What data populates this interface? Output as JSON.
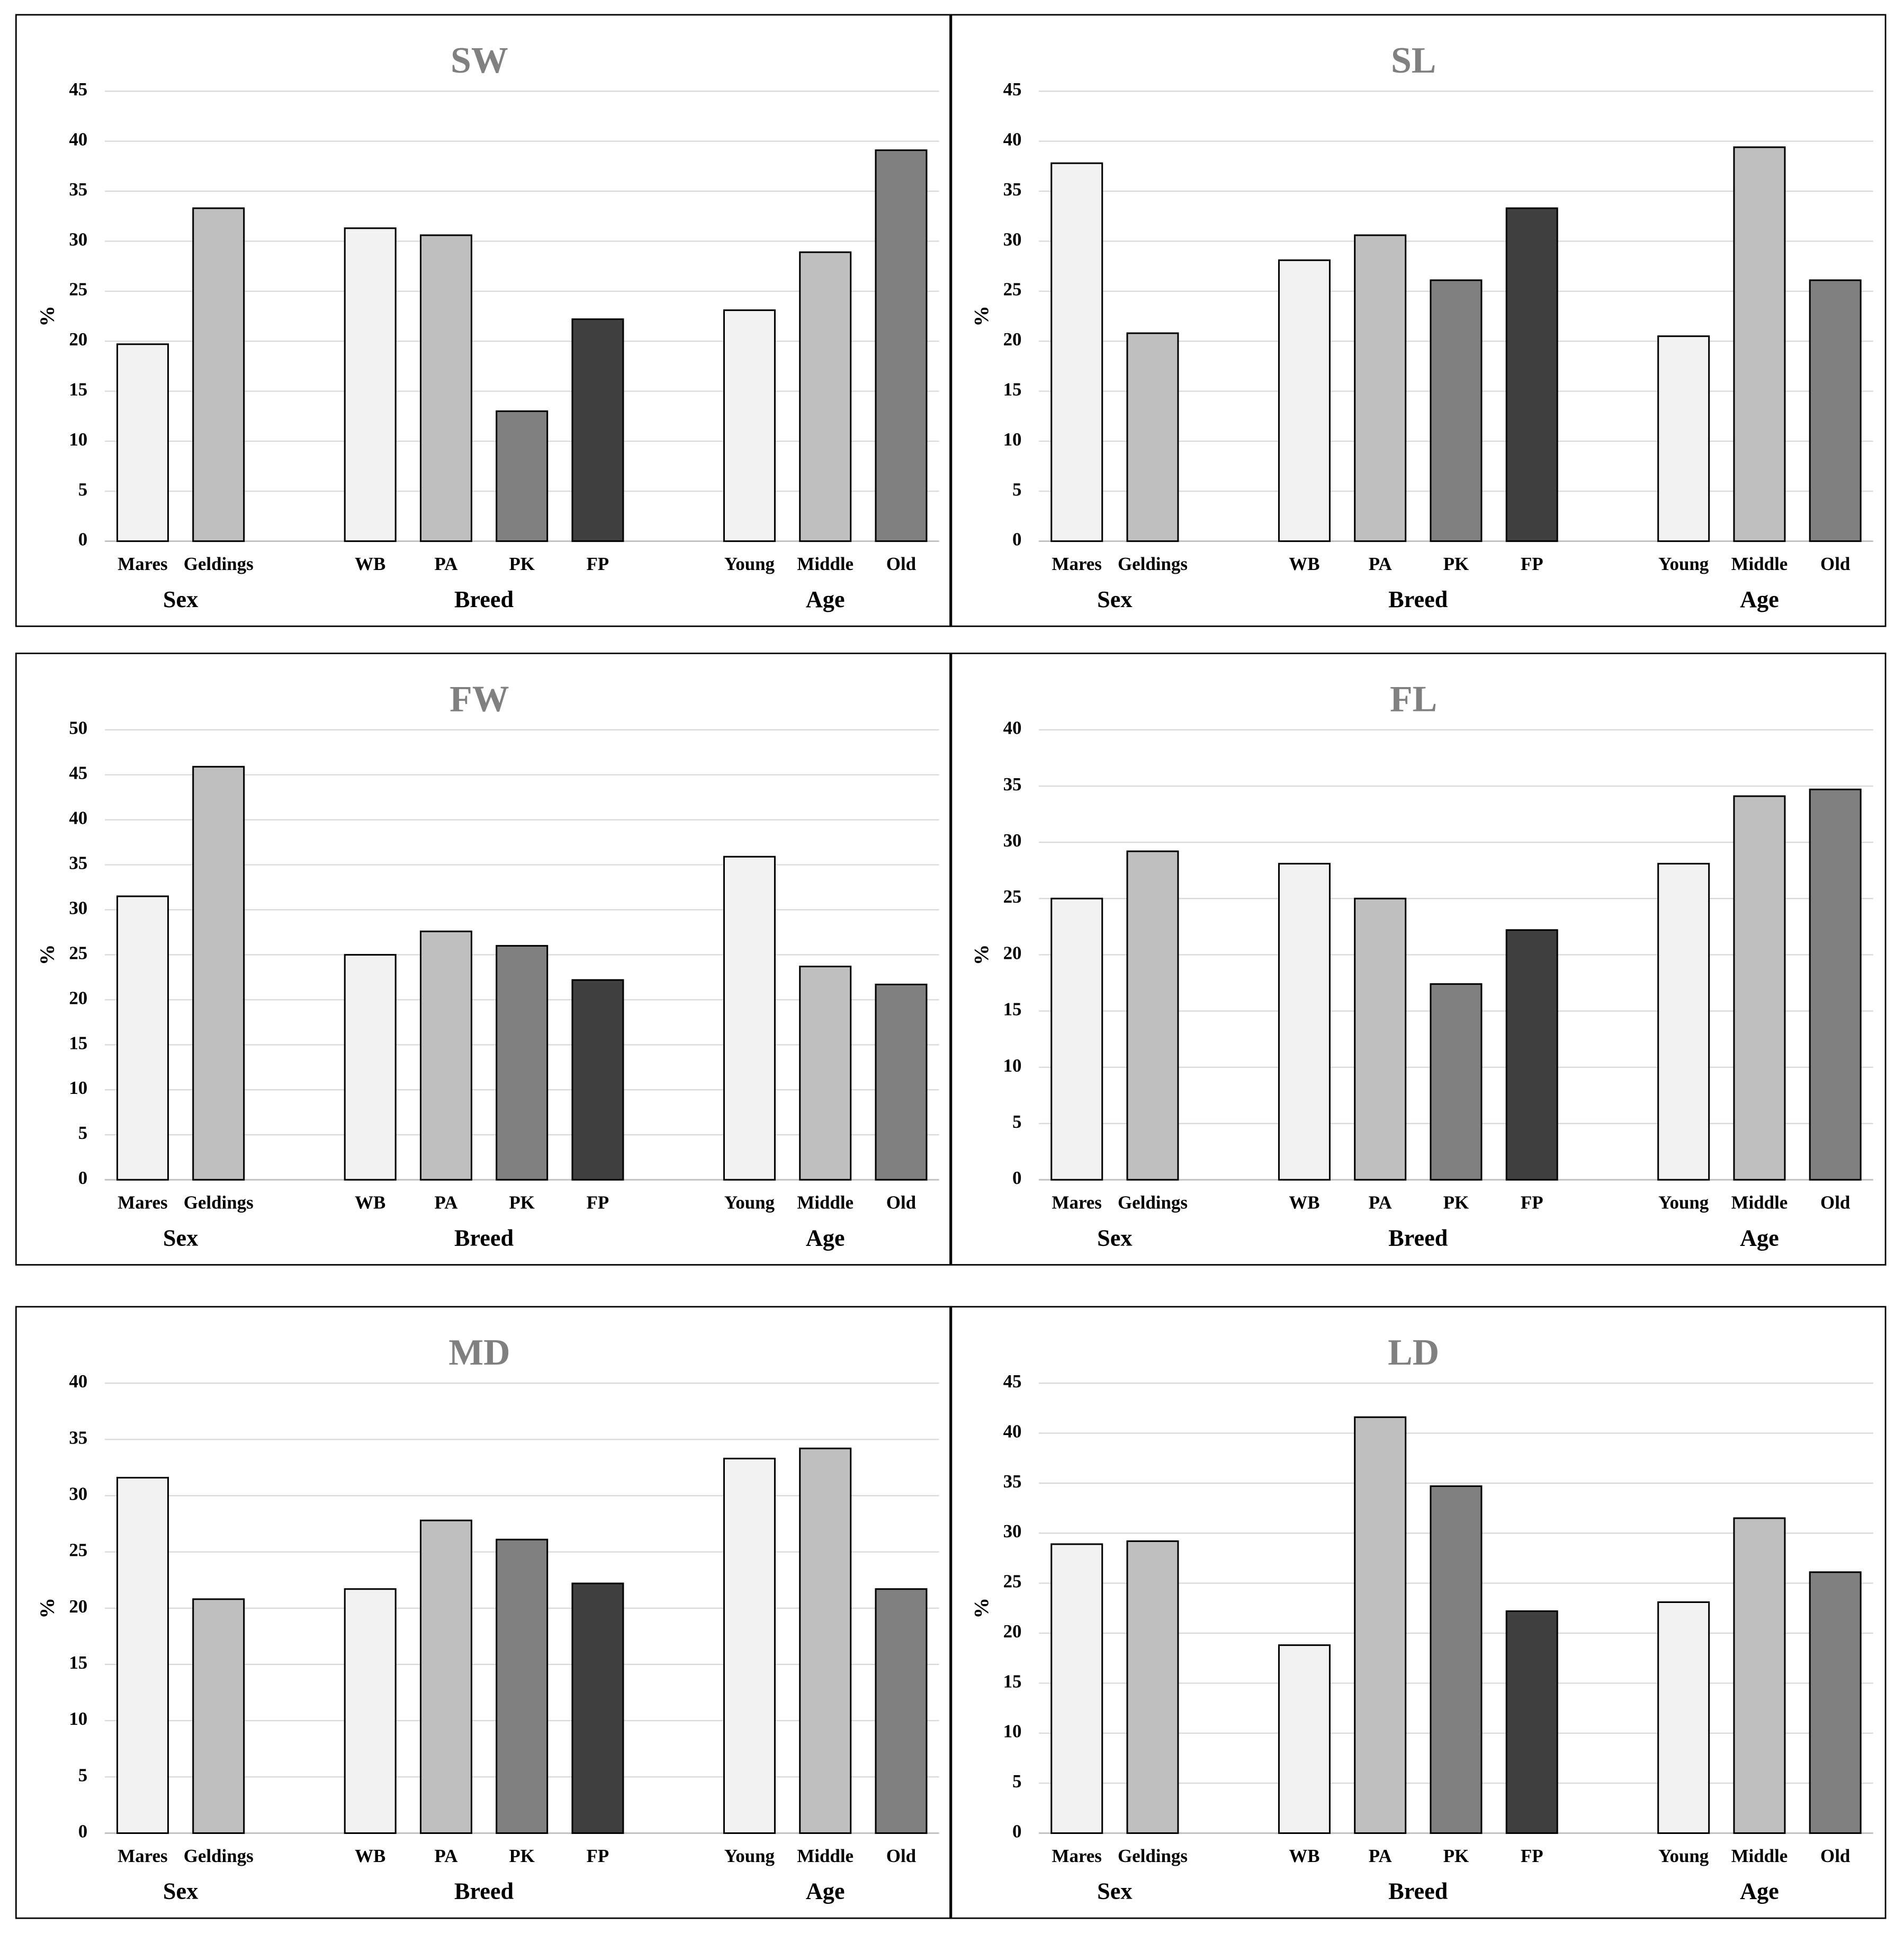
{
  "chart_data": [
    {
      "type": "bar",
      "title": "SW",
      "ylabel": "%",
      "ylim": [
        0,
        45
      ],
      "yticks": [
        0,
        5,
        10,
        15,
        20,
        25,
        30,
        35,
        40,
        45
      ],
      "grid": true,
      "groups": [
        {
          "name": "Sex",
          "categories": [
            "Mares",
            "Geldings"
          ],
          "values": [
            19.7,
            33.3
          ],
          "colors": [
            "#f2f2f2",
            "#bfbfbf"
          ]
        },
        {
          "name": "Breed",
          "categories": [
            "WB",
            "PA",
            "PK",
            "FP"
          ],
          "values": [
            31.3,
            30.6,
            13.0,
            22.2
          ],
          "colors": [
            "#f2f2f2",
            "#bfbfbf",
            "#808080",
            "#404040"
          ]
        },
        {
          "name": "Age",
          "categories": [
            "Young",
            "Middle",
            "Old"
          ],
          "values": [
            23.1,
            28.9,
            39.1
          ],
          "colors": [
            "#f2f2f2",
            "#bfbfbf",
            "#808080"
          ]
        }
      ]
    },
    {
      "type": "bar",
      "title": "SL",
      "ylabel": "%",
      "ylim": [
        0,
        45
      ],
      "yticks": [
        0,
        5,
        10,
        15,
        20,
        25,
        30,
        35,
        40,
        45
      ],
      "grid": true,
      "groups": [
        {
          "name": "Sex",
          "categories": [
            "Mares",
            "Geldings"
          ],
          "values": [
            37.8,
            20.8
          ],
          "colors": [
            "#f2f2f2",
            "#bfbfbf"
          ]
        },
        {
          "name": "Breed",
          "categories": [
            "WB",
            "PA",
            "PK",
            "FP"
          ],
          "values": [
            28.1,
            30.6,
            26.1,
            33.3
          ],
          "colors": [
            "#f2f2f2",
            "#bfbfbf",
            "#808080",
            "#404040"
          ]
        },
        {
          "name": "Age",
          "categories": [
            "Young",
            "Middle",
            "Old"
          ],
          "values": [
            20.5,
            39.4,
            26.1
          ],
          "colors": [
            "#f2f2f2",
            "#bfbfbf",
            "#808080"
          ]
        }
      ]
    },
    {
      "type": "bar",
      "title": "FW",
      "ylabel": "%",
      "ylim": [
        0,
        50
      ],
      "yticks": [
        0,
        5,
        10,
        15,
        20,
        25,
        30,
        35,
        40,
        45,
        50
      ],
      "grid": true,
      "groups": [
        {
          "name": "Sex",
          "categories": [
            "Mares",
            "Geldings"
          ],
          "values": [
            31.5,
            45.9
          ],
          "colors": [
            "#f2f2f2",
            "#bfbfbf"
          ]
        },
        {
          "name": "Breed",
          "categories": [
            "WB",
            "PA",
            "PK",
            "FP"
          ],
          "values": [
            25.0,
            27.6,
            26.0,
            22.2
          ],
          "colors": [
            "#f2f2f2",
            "#bfbfbf",
            "#808080",
            "#404040"
          ]
        },
        {
          "name": "Age",
          "categories": [
            "Young",
            "Middle",
            "Old"
          ],
          "values": [
            35.9,
            23.7,
            21.7
          ],
          "colors": [
            "#f2f2f2",
            "#bfbfbf",
            "#808080"
          ]
        }
      ]
    },
    {
      "type": "bar",
      "title": "FL",
      "ylabel": "%",
      "ylim": [
        0,
        40
      ],
      "yticks": [
        0,
        5,
        10,
        15,
        20,
        25,
        30,
        35,
        40
      ],
      "grid": true,
      "groups": [
        {
          "name": "Sex",
          "categories": [
            "Mares",
            "Geldings"
          ],
          "values": [
            25.0,
            29.2
          ],
          "colors": [
            "#f2f2f2",
            "#bfbfbf"
          ]
        },
        {
          "name": "Breed",
          "categories": [
            "WB",
            "PA",
            "PK",
            "FP"
          ],
          "values": [
            28.1,
            25.0,
            17.4,
            22.2
          ],
          "colors": [
            "#f2f2f2",
            "#bfbfbf",
            "#808080",
            "#404040"
          ]
        },
        {
          "name": "Age",
          "categories": [
            "Young",
            "Middle",
            "Old"
          ],
          "values": [
            28.1,
            34.1,
            34.7
          ],
          "colors": [
            "#f2f2f2",
            "#bfbfbf",
            "#808080"
          ]
        }
      ]
    },
    {
      "type": "bar",
      "title": "MD",
      "ylabel": "%",
      "ylim": [
        0,
        40
      ],
      "yticks": [
        0,
        5,
        10,
        15,
        20,
        25,
        30,
        35,
        40
      ],
      "grid": true,
      "groups": [
        {
          "name": "Sex",
          "categories": [
            "Mares",
            "Geldings"
          ],
          "values": [
            31.6,
            20.8
          ],
          "colors": [
            "#f2f2f2",
            "#bfbfbf"
          ]
        },
        {
          "name": "Breed",
          "categories": [
            "WB",
            "PA",
            "PK",
            "FP"
          ],
          "values": [
            21.7,
            27.8,
            26.1,
            22.2
          ],
          "colors": [
            "#f2f2f2",
            "#bfbfbf",
            "#808080",
            "#404040"
          ]
        },
        {
          "name": "Age",
          "categories": [
            "Young",
            "Middle",
            "Old"
          ],
          "values": [
            33.3,
            34.2,
            21.7
          ],
          "colors": [
            "#f2f2f2",
            "#bfbfbf",
            "#808080"
          ]
        }
      ]
    },
    {
      "type": "bar",
      "title": "LD",
      "ylabel": "%",
      "ylim": [
        0,
        45
      ],
      "yticks": [
        0,
        5,
        10,
        15,
        20,
        25,
        30,
        35,
        40,
        45
      ],
      "grid": true,
      "groups": [
        {
          "name": "Sex",
          "categories": [
            "Mares",
            "Geldings"
          ],
          "values": [
            28.9,
            29.2
          ],
          "colors": [
            "#f2f2f2",
            "#bfbfbf"
          ]
        },
        {
          "name": "Breed",
          "categories": [
            "WB",
            "PA",
            "PK",
            "FP"
          ],
          "values": [
            18.8,
            41.6,
            34.7,
            22.2
          ],
          "colors": [
            "#f2f2f2",
            "#bfbfbf",
            "#808080",
            "#404040"
          ]
        },
        {
          "name": "Age",
          "categories": [
            "Young",
            "Middle",
            "Old"
          ],
          "values": [
            23.1,
            31.5,
            26.1
          ],
          "colors": [
            "#f2f2f2",
            "#bfbfbf",
            "#808080"
          ]
        }
      ]
    }
  ]
}
